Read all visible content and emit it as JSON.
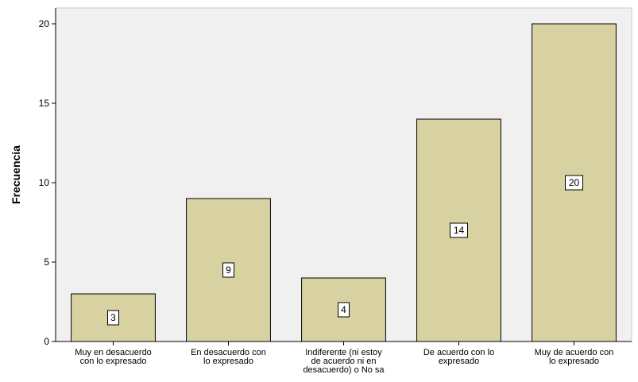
{
  "chart_data": {
    "type": "bar",
    "categories": [
      [
        "Muy en desacuerdo",
        "con lo expresado"
      ],
      [
        "En desacuerdo con",
        "lo expresado"
      ],
      [
        "Indiferente (ni estoy",
        "de acuerdo ni en",
        "desacuerdo) o No sa"
      ],
      [
        "De acuerdo con lo",
        "expresado"
      ],
      [
        "Muy de acuerdo con",
        "lo expresado"
      ]
    ],
    "values": [
      3,
      9,
      4,
      14,
      20
    ],
    "data_labels": [
      "3",
      "9",
      "4",
      "14",
      "20"
    ],
    "ylabel": "Frecuencia",
    "xlabel": "",
    "ylim": [
      0,
      21
    ],
    "yticks": [
      0,
      5,
      10,
      15,
      20
    ],
    "ytick_labels": [
      "0",
      "5",
      "10",
      "15",
      "20"
    ],
    "bar_color": "#d8d1a2",
    "plot_bg": "#f0f0f0",
    "grid": false
  }
}
